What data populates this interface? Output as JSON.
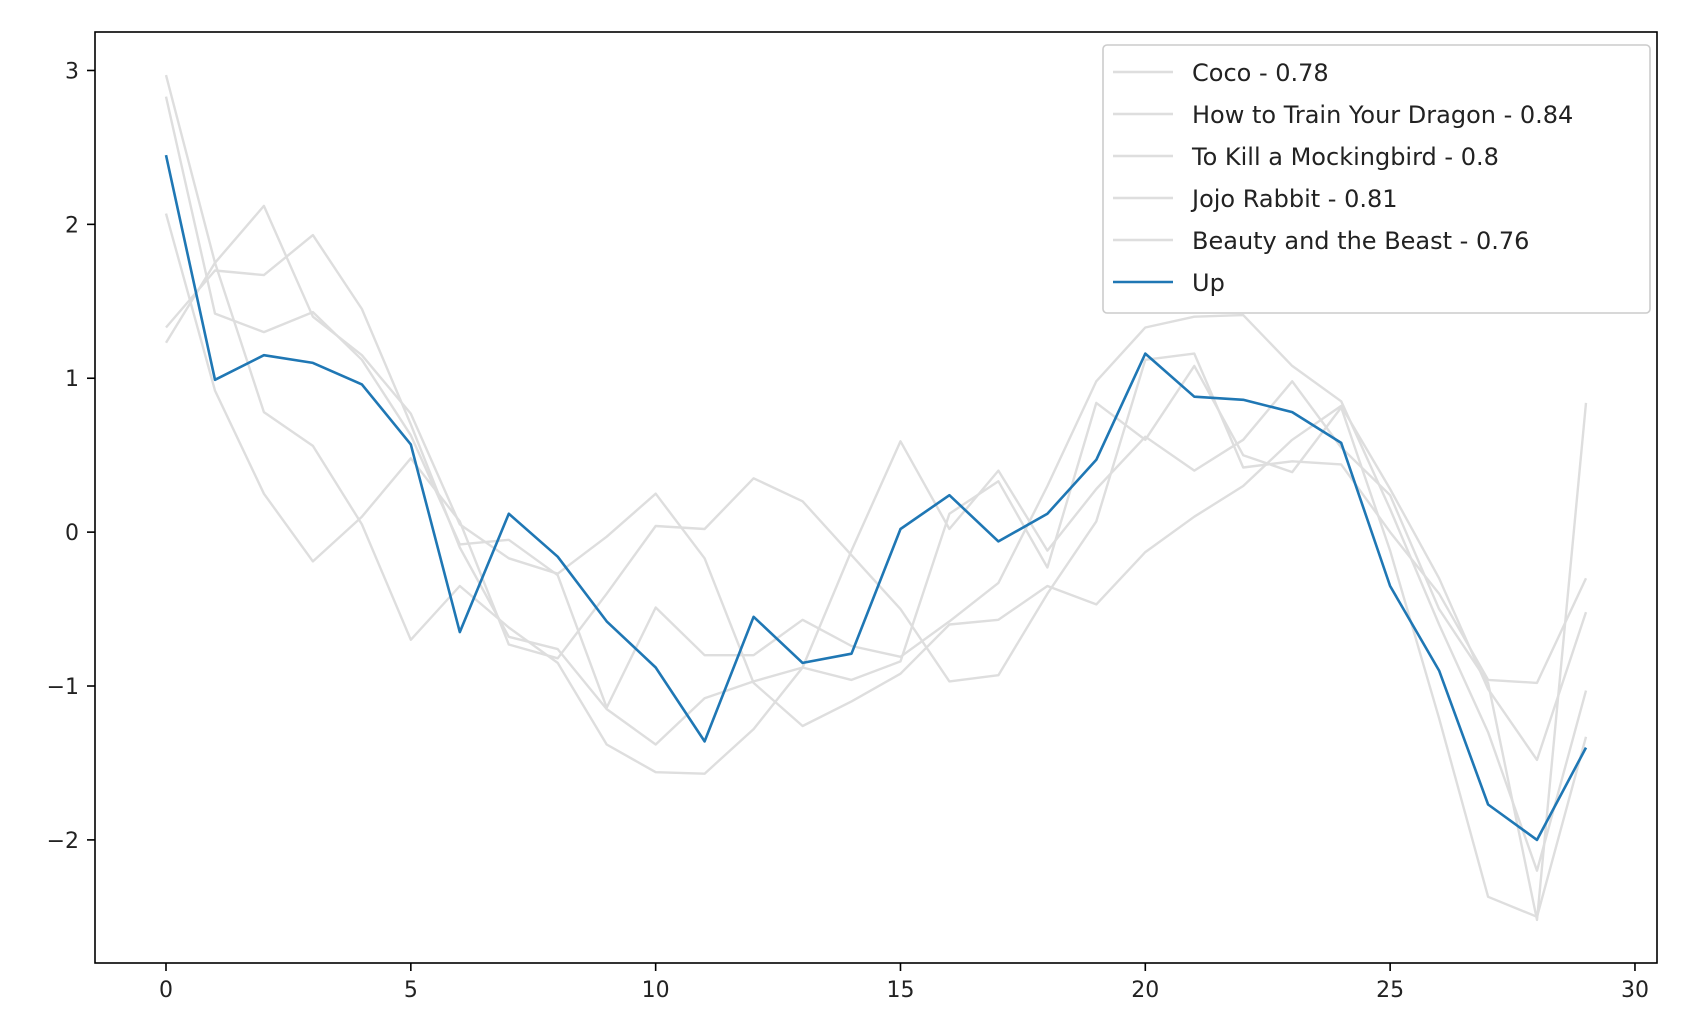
{
  "chart_data": {
    "type": "line",
    "title": "",
    "xlabel": "",
    "ylabel": "",
    "xlim": [
      -1.45,
      30.45
    ],
    "ylim": [
      -2.8,
      3.25
    ],
    "x_ticks": [
      0,
      5,
      10,
      15,
      20,
      25,
      30
    ],
    "y_ticks": [
      -2,
      -1,
      0,
      1,
      2,
      3
    ],
    "y_tick_labels": [
      "−2",
      "−1",
      "0",
      "1",
      "2",
      "3"
    ],
    "grid": false,
    "legend_position": "top-right",
    "x": [
      0,
      1,
      2,
      3,
      4,
      5,
      6,
      7,
      8,
      9,
      10,
      11,
      12,
      13,
      14,
      15,
      16,
      17,
      18,
      19,
      20,
      21,
      22,
      23,
      24,
      25,
      26,
      27,
      28,
      29
    ],
    "series": [
      {
        "name": "Coco - 0.78",
        "color": "#dedede",
        "values": [
          2.97,
          1.75,
          0.78,
          0.56,
          0.05,
          -0.7,
          -0.35,
          -0.62,
          -0.85,
          -1.38,
          -1.56,
          -1.57,
          -1.28,
          -0.88,
          -0.12,
          0.59,
          0.02,
          0.4,
          -0.12,
          0.28,
          0.62,
          0.4,
          0.6,
          0.98,
          0.55,
          0.24,
          -0.5,
          -0.98,
          -2.52,
          0.84
        ]
      },
      {
        "name": "How to Train Your Dragon - 0.84",
        "color": "#dedede",
        "values": [
          1.23,
          1.75,
          2.12,
          1.4,
          1.15,
          0.77,
          0.05,
          -0.17,
          -0.27,
          -0.03,
          0.25,
          -0.17,
          -0.98,
          -1.26,
          -1.1,
          -0.92,
          -0.6,
          -0.57,
          -0.35,
          -0.47,
          -0.13,
          0.1,
          0.3,
          0.6,
          0.82,
          0.28,
          -0.3,
          -1.02,
          -1.48,
          -0.52
        ]
      },
      {
        "name": "To Kill a Mockingbird - 0.8",
        "color": "#dedede",
        "values": [
          2.83,
          1.42,
          1.3,
          1.43,
          1.12,
          0.63,
          -0.08,
          -0.05,
          -0.28,
          -1.14,
          -0.49,
          -0.8,
          -0.8,
          -0.57,
          -0.74,
          -0.81,
          -0.58,
          -0.33,
          0.3,
          0.98,
          1.33,
          1.4,
          1.41,
          1.08,
          0.85,
          0.15,
          -0.6,
          -1.3,
          -2.2,
          -1.03
        ]
      },
      {
        "name": "Jojo Rabbit - 0.81",
        "color": "#dedede",
        "values": [
          2.07,
          0.92,
          0.25,
          -0.19,
          0.1,
          0.48,
          0.07,
          -0.73,
          -0.82,
          -0.4,
          0.04,
          0.02,
          0.35,
          0.2,
          -0.15,
          -0.5,
          -0.97,
          -0.93,
          -0.4,
          0.07,
          1.12,
          1.16,
          0.42,
          0.46,
          0.44,
          0.0,
          -0.4,
          -0.96,
          -0.98,
          -0.3
        ]
      },
      {
        "name": "Beauty and the Beast - 0.76",
        "color": "#dedede",
        "values": [
          1.33,
          1.7,
          1.67,
          1.93,
          1.45,
          0.7,
          -0.1,
          -0.68,
          -0.76,
          -1.15,
          -1.38,
          -1.08,
          -0.97,
          -0.88,
          -0.96,
          -0.84,
          0.12,
          0.33,
          -0.23,
          0.84,
          0.6,
          1.08,
          0.5,
          0.39,
          0.81,
          -0.12,
          -1.21,
          -2.37,
          -2.5,
          -1.33
        ]
      },
      {
        "name": "Up",
        "color": "#1f77b4",
        "values": [
          2.45,
          0.99,
          1.15,
          1.1,
          0.96,
          0.57,
          -0.65,
          0.12,
          -0.16,
          -0.58,
          -0.88,
          -1.36,
          -0.55,
          -0.85,
          -0.79,
          0.02,
          0.24,
          -0.06,
          0.12,
          0.47,
          1.16,
          0.88,
          0.86,
          0.78,
          0.58,
          -0.35,
          -0.9,
          -1.77,
          -2.0,
          -1.4
        ]
      }
    ]
  }
}
